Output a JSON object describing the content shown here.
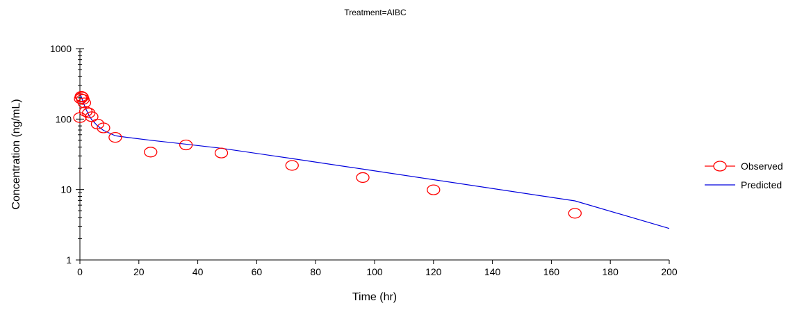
{
  "chart_data": {
    "type": "scatter",
    "title": "Treatment=AIBC",
    "xlabel": "Time (hr)",
    "ylabel": "Concentration (ng/mL)",
    "xlim": [
      0,
      200
    ],
    "ylim": [
      1,
      1000
    ],
    "yscale": "log",
    "x_ticks": [
      0,
      20,
      40,
      60,
      80,
      100,
      120,
      140,
      160,
      180,
      200
    ],
    "y_ticks": [
      1,
      10,
      100,
      1000
    ],
    "grid": false,
    "legend_position": "right",
    "series": [
      {
        "name": "Observed",
        "marker": "open-circle",
        "color": "#ff0000",
        "x": [
          0,
          0.25,
          0.5,
          0.75,
          1,
          1.5,
          2,
          3,
          4,
          6,
          8,
          12,
          24,
          36,
          48,
          72,
          96,
          120,
          168
        ],
        "y": [
          105,
          195,
          210,
          205,
          190,
          170,
          128,
          122,
          108,
          85,
          75,
          55,
          34,
          43,
          33,
          22,
          14.8,
          9.9,
          4.6
        ]
      },
      {
        "name": "Predicted",
        "line": "solid",
        "color": "#0000dd",
        "x": [
          0,
          0.25,
          0.5,
          1,
          1.5,
          2,
          3,
          4,
          6,
          8,
          12,
          16,
          24,
          36,
          48,
          72,
          96,
          120,
          168,
          200
        ],
        "y": [
          230,
          220,
          205,
          180,
          158,
          140,
          115,
          98,
          80,
          69,
          58,
          55,
          50,
          44,
          38.5,
          27.5,
          19.5,
          13.8,
          6.9,
          2.8
        ]
      }
    ]
  }
}
